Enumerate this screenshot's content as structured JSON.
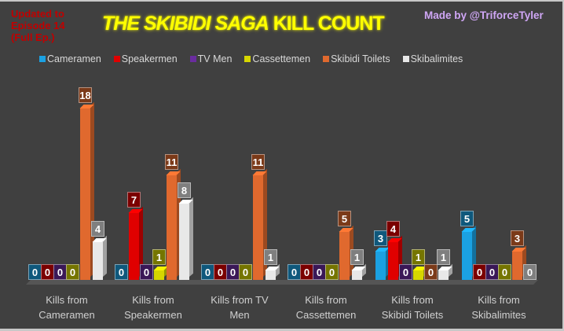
{
  "header": {
    "update_note": [
      "Updated to",
      "Episode 14",
      "(Full Ep.)"
    ],
    "title_italic": "THE SKIBIDI SAGA",
    "title_upright": " KILL COUNT",
    "credit": "Made by @TriforceTyler"
  },
  "legend": [
    {
      "label": "Cameramen",
      "color": "#1ba1e2"
    },
    {
      "label": "Speakermen",
      "color": "#e00000"
    },
    {
      "label": "TV Men",
      "color": "#6a2c9f"
    },
    {
      "label": "Cassettemen",
      "color": "#d6d600"
    },
    {
      "label": "Skibidi Toilets",
      "color": "#e0692e"
    },
    {
      "label": "Skibalimites",
      "color": "#e8e8e8"
    }
  ],
  "categories": [
    [
      "Kills from",
      "Cameramen"
    ],
    [
      "Kills from",
      "Speakermen"
    ],
    [
      "Kills from TV",
      "Men"
    ],
    [
      "Kills from",
      "Cassettemen"
    ],
    [
      "Kills from",
      "Skibidi Toilets"
    ],
    [
      "Kills from",
      "Skibalimites"
    ]
  ],
  "chart_data": {
    "type": "bar",
    "title": "THE SKIBIDI SAGA KILL COUNT",
    "subtitle": "Updated to Episode 14 (Full Ep.)",
    "annotation": "Made by @TriforceTyler",
    "categories": [
      "Kills from Cameramen",
      "Kills from Speakermen",
      "Kills from TV Men",
      "Kills from Cassettemen",
      "Kills from Skibidi Toilets",
      "Kills from Skibalimites"
    ],
    "series": [
      {
        "name": "Cameramen",
        "values": [
          0,
          0,
          0,
          0,
          3,
          5
        ]
      },
      {
        "name": "Speakermen",
        "values": [
          0,
          7,
          0,
          0,
          4,
          0
        ]
      },
      {
        "name": "TV Men",
        "values": [
          0,
          0,
          0,
          0,
          0,
          0
        ]
      },
      {
        "name": "Cassettemen",
        "values": [
          0,
          1,
          0,
          0,
          1,
          0
        ]
      },
      {
        "name": "Skibidi Toilets",
        "values": [
          18,
          11,
          11,
          5,
          0,
          3
        ]
      },
      {
        "name": "Skibalimites",
        "values": [
          4,
          8,
          1,
          1,
          1,
          0
        ]
      }
    ],
    "xlabel": "",
    "ylabel": "",
    "ylim": [
      0,
      18
    ],
    "grid": false,
    "legend_position": "top",
    "data_labels": true,
    "style": "3d clustered column"
  }
}
